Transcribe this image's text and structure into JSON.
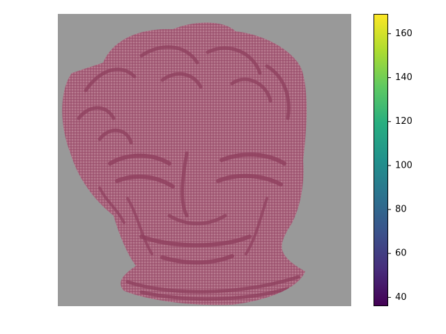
{
  "chart_data": {
    "type": "heatmap",
    "title": "",
    "xlabel": "",
    "ylabel": "",
    "colormap": "viridis",
    "axes_visible": false,
    "grid": false,
    "colorbar": {
      "location": "right",
      "vmin": 36,
      "vmax": 169,
      "ticks": [
        40,
        60,
        80,
        100,
        120,
        140,
        160
      ],
      "tick_labels": [
        "40",
        "60",
        "80",
        "100",
        "120",
        "140",
        "160"
      ]
    },
    "image_colors": {
      "background": "#999999",
      "foreground": "#a8607a",
      "dark_lines": "#8e3f5e"
    }
  }
}
